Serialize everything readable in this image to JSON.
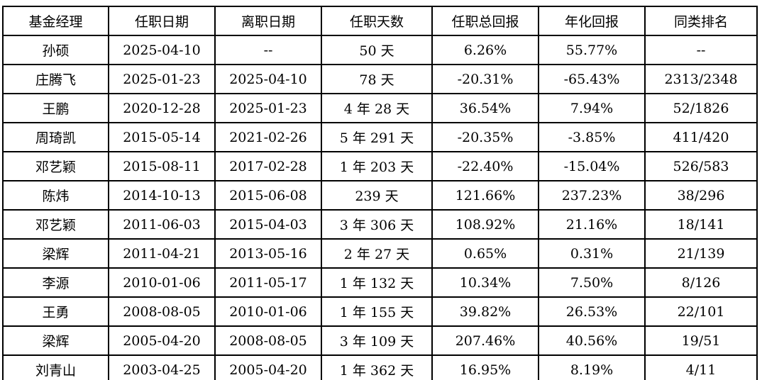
{
  "colors": {
    "border": "#000000",
    "text": "#000000",
    "background": "#ffffff"
  },
  "table": {
    "headers": [
      "基金经理",
      "任职日期",
      "离职日期",
      "任职天数",
      "任职总回报",
      "年化回报",
      "同类排名"
    ],
    "rows": [
      [
        "孙硕",
        "2025-04-10",
        "--",
        "50 天",
        "6.26%",
        "55.77%",
        "--"
      ],
      [
        "庄腾飞",
        "2025-01-23",
        "2025-04-10",
        "78 天",
        "-20.31%",
        "-65.43%",
        "2313/2348"
      ],
      [
        "王鹏",
        "2020-12-28",
        "2025-01-23",
        "4 年 28 天",
        "36.54%",
        "7.94%",
        "52/1826"
      ],
      [
        "周琦凯",
        "2015-05-14",
        "2021-02-26",
        "5 年 291 天",
        "-20.35%",
        "-3.85%",
        "411/420"
      ],
      [
        "邓艺颖",
        "2015-08-11",
        "2017-02-28",
        "1 年 203 天",
        "-22.40%",
        "-15.04%",
        "526/583"
      ],
      [
        "陈炜",
        "2014-10-13",
        "2015-06-08",
        "239 天",
        "121.66%",
        "237.23%",
        "38/296"
      ],
      [
        "邓艺颖",
        "2011-06-03",
        "2015-04-03",
        "3 年 306 天",
        "108.92%",
        "21.16%",
        "18/141"
      ],
      [
        "梁辉",
        "2011-04-21",
        "2013-05-16",
        "2 年 27 天",
        "0.65%",
        "0.31%",
        "21/139"
      ],
      [
        "李源",
        "2010-01-06",
        "2011-05-17",
        "1 年 132 天",
        "10.34%",
        "7.50%",
        "8/126"
      ],
      [
        "王勇",
        "2008-08-05",
        "2010-01-06",
        "1 年 155 天",
        "39.82%",
        "26.53%",
        "22/101"
      ],
      [
        "梁辉",
        "2005-04-20",
        "2008-08-05",
        "3 年 109 天",
        "207.46%",
        "40.56%",
        "19/51"
      ],
      [
        "刘青山",
        "2003-04-25",
        "2005-04-20",
        "1 年 362 天",
        "16.95%",
        "8.19%",
        "4/11"
      ]
    ]
  }
}
